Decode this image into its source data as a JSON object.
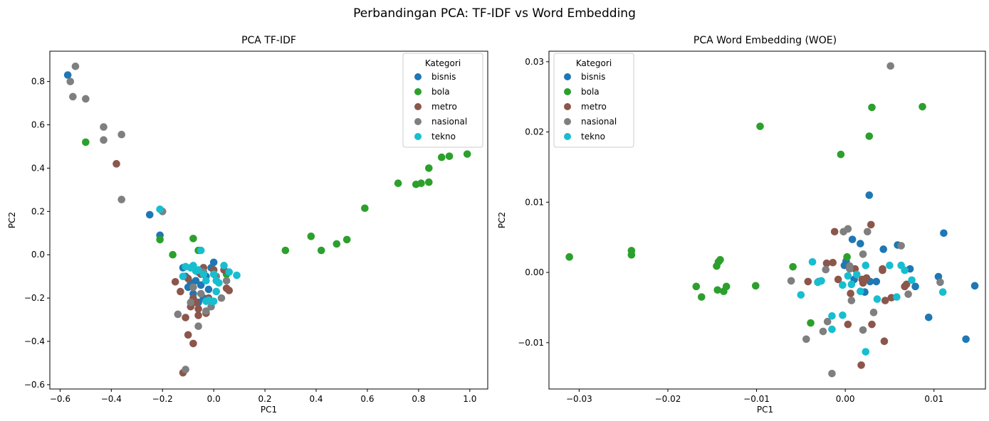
{
  "suptitle": "Perbandingan PCA: TF-IDF vs Word Embedding",
  "legend_title": "Kategori",
  "categories": [
    {
      "name": "bisnis",
      "color": "#1f77b4"
    },
    {
      "name": "bola",
      "color": "#2ca02c"
    },
    {
      "name": "metro",
      "color": "#8c564b"
    },
    {
      "name": "nasional",
      "color": "#7f7f7f"
    },
    {
      "name": "tekno",
      "color": "#17becf"
    }
  ],
  "chart_data": [
    {
      "type": "scatter",
      "title": "PCA TF-IDF",
      "xlabel": "PC1",
      "ylabel": "PC2",
      "xlim": [
        -0.64,
        1.07
      ],
      "ylim": [
        -0.62,
        0.94
      ],
      "xticks": [
        -0.6,
        -0.4,
        -0.2,
        0.0,
        0.2,
        0.4,
        0.6,
        0.8,
        1.0
      ],
      "xtick_labels": [
        "−0.6",
        "−0.4",
        "−0.2",
        "0.0",
        "0.2",
        "0.4",
        "0.6",
        "0.8",
        "1.0"
      ],
      "yticks": [
        -0.6,
        -0.4,
        -0.2,
        0.0,
        0.2,
        0.4,
        0.6,
        0.8
      ],
      "ytick_labels": [
        "−0.6",
        "−0.4",
        "−0.2",
        "0.0",
        "0.2",
        "0.4",
        "0.6",
        "0.8"
      ],
      "legend_position": "top-right",
      "grid": false,
      "series": [
        {
          "name": "bisnis",
          "points": [
            [
              -0.57,
              0.83
            ],
            [
              -0.25,
              0.185
            ],
            [
              -0.21,
              0.09
            ],
            [
              -0.12,
              -0.06
            ],
            [
              -0.11,
              -0.1
            ],
            [
              -0.1,
              -0.15
            ],
            [
              -0.09,
              -0.13
            ],
            [
              -0.08,
              -0.18
            ],
            [
              -0.07,
              -0.12
            ],
            [
              -0.06,
              -0.08
            ],
            [
              -0.05,
              -0.14
            ],
            [
              -0.04,
              -0.2
            ],
            [
              -0.03,
              -0.1
            ],
            [
              -0.02,
              -0.16
            ],
            [
              -0.01,
              -0.06
            ],
            [
              0.0,
              -0.035
            ],
            [
              -0.09,
              -0.06
            ],
            [
              -0.06,
              -0.22
            ]
          ]
        },
        {
          "name": "bola",
          "points": [
            [
              -0.5,
              0.52
            ],
            [
              -0.21,
              0.07
            ],
            [
              -0.16,
              0.0
            ],
            [
              -0.08,
              0.075
            ],
            [
              -0.06,
              0.02
            ],
            [
              0.05,
              -0.09
            ],
            [
              0.28,
              0.02
            ],
            [
              0.38,
              0.085
            ],
            [
              0.42,
              0.02
            ],
            [
              0.48,
              0.05
            ],
            [
              0.52,
              0.07
            ],
            [
              0.59,
              0.215
            ],
            [
              0.72,
              0.33
            ],
            [
              0.79,
              0.325
            ],
            [
              0.81,
              0.33
            ],
            [
              0.84,
              0.335
            ],
            [
              0.84,
              0.4
            ],
            [
              0.89,
              0.45
            ],
            [
              0.92,
              0.455
            ],
            [
              0.99,
              0.465
            ]
          ]
        },
        {
          "name": "metro",
          "points": [
            [
              -0.38,
              0.42
            ],
            [
              -0.15,
              -0.125
            ],
            [
              -0.13,
              -0.17
            ],
            [
              -0.11,
              -0.29
            ],
            [
              -0.1,
              -0.37
            ],
            [
              -0.09,
              -0.24
            ],
            [
              -0.08,
              -0.41
            ],
            [
              -0.07,
              -0.22
            ],
            [
              -0.06,
              -0.28
            ],
            [
              -0.05,
              -0.09
            ],
            [
              -0.04,
              -0.06
            ],
            [
              -0.03,
              -0.27
            ],
            [
              -0.02,
              -0.2
            ],
            [
              0.0,
              -0.07
            ],
            [
              0.04,
              -0.07
            ],
            [
              0.05,
              -0.155
            ],
            [
              0.06,
              -0.165
            ],
            [
              -0.12,
              -0.545
            ],
            [
              -0.1,
              -0.11
            ],
            [
              -0.06,
              -0.25
            ],
            [
              -0.08,
              -0.2
            ]
          ]
        },
        {
          "name": "nasional",
          "points": [
            [
              -0.56,
              0.8
            ],
            [
              -0.55,
              0.73
            ],
            [
              -0.54,
              0.87
            ],
            [
              -0.5,
              0.72
            ],
            [
              -0.43,
              0.59
            ],
            [
              -0.43,
              0.53
            ],
            [
              -0.36,
              0.555
            ],
            [
              -0.36,
              0.255
            ],
            [
              -0.2,
              0.2
            ],
            [
              -0.14,
              -0.275
            ],
            [
              -0.11,
              -0.53
            ],
            [
              -0.09,
              -0.22
            ],
            [
              -0.08,
              -0.15
            ],
            [
              -0.06,
              -0.33
            ],
            [
              -0.05,
              -0.18
            ],
            [
              -0.04,
              -0.08
            ],
            [
              -0.03,
              -0.26
            ],
            [
              -0.01,
              -0.24
            ],
            [
              0.01,
              -0.1
            ],
            [
              0.03,
              -0.2
            ],
            [
              0.05,
              -0.12
            ]
          ]
        },
        {
          "name": "tekno",
          "points": [
            [
              -0.21,
              0.21
            ],
            [
              -0.12,
              -0.1
            ],
            [
              -0.11,
              -0.055
            ],
            [
              -0.09,
              -0.06
            ],
            [
              -0.08,
              -0.05
            ],
            [
              -0.07,
              -0.075
            ],
            [
              -0.06,
              -0.07
            ],
            [
              -0.05,
              0.02
            ],
            [
              -0.04,
              -0.09
            ],
            [
              -0.03,
              -0.12
            ],
            [
              -0.02,
              -0.21
            ],
            [
              -0.01,
              -0.215
            ],
            [
              0.0,
              -0.09
            ],
            [
              0.01,
              -0.12
            ],
            [
              0.01,
              -0.17
            ],
            [
              0.02,
              -0.13
            ],
            [
              0.04,
              -0.05
            ],
            [
              0.06,
              -0.08
            ],
            [
              0.09,
              -0.095
            ],
            [
              0.0,
              -0.215
            ],
            [
              -0.03,
              -0.215
            ]
          ]
        }
      ]
    },
    {
      "type": "scatter",
      "title": "PCA Word Embedding (WOE)",
      "xlabel": "PC1",
      "ylabel": "PC2",
      "xlim": [
        -0.0334,
        0.0158
      ],
      "ylim": [
        -0.0166,
        0.0315
      ],
      "xticks": [
        -0.03,
        -0.02,
        -0.01,
        0.0,
        0.01
      ],
      "xtick_labels": [
        "−0.03",
        "−0.02",
        "−0.01",
        "0.00",
        "0.01"
      ],
      "yticks": [
        -0.01,
        0.0,
        0.01,
        0.02,
        0.03
      ],
      "ytick_labels": [
        "−0.01",
        "0.00",
        "0.01",
        "0.02",
        "0.03"
      ],
      "legend_position": "top-left",
      "grid": false,
      "series": [
        {
          "name": "bisnis",
          "points": [
            [
              0.0027,
              0.011
            ],
            [
              0.0111,
              0.0056
            ],
            [
              0.0059,
              0.0039
            ],
            [
              0.0043,
              0.0033
            ],
            [
              0.0017,
              0.0041
            ],
            [
              0.0008,
              0.0047
            ],
            [
              0.0001,
              0.0016
            ],
            [
              -0.0001,
              0.001
            ],
            [
              0.001,
              -0.001
            ],
            [
              0.0022,
              -0.0028
            ],
            [
              0.0028,
              -0.0013
            ],
            [
              0.0035,
              -0.0013
            ],
            [
              0.0073,
              0.0005
            ],
            [
              0.0079,
              -0.002
            ],
            [
              0.0105,
              -0.0006
            ],
            [
              0.0094,
              -0.0064
            ],
            [
              0.0136,
              -0.0095
            ],
            [
              0.0146,
              -0.0019
            ]
          ]
        },
        {
          "name": "bola",
          "points": [
            [
              -0.0311,
              0.0022
            ],
            [
              -0.0241,
              0.0031
            ],
            [
              -0.0241,
              0.0025
            ],
            [
              -0.0168,
              -0.002
            ],
            [
              -0.0162,
              -0.0035
            ],
            [
              -0.0145,
              0.0009
            ],
            [
              -0.0143,
              0.0015
            ],
            [
              -0.0141,
              0.0018
            ],
            [
              -0.0144,
              -0.0025
            ],
            [
              -0.0137,
              -0.0027
            ],
            [
              -0.0134,
              -0.002
            ],
            [
              -0.0101,
              -0.0019
            ],
            [
              -0.0096,
              0.0208
            ],
            [
              -0.0059,
              0.0008
            ],
            [
              -0.0039,
              -0.0072
            ],
            [
              -0.0005,
              0.0168
            ],
            [
              0.0002,
              0.0022
            ],
            [
              0.0027,
              0.0194
            ],
            [
              0.003,
              0.0235
            ],
            [
              0.0087,
              0.0236
            ]
          ]
        },
        {
          "name": "metro",
          "points": [
            [
              0.0029,
              0.0068
            ],
            [
              -0.0012,
              0.0058
            ],
            [
              0.0011,
              0.0005
            ],
            [
              -0.0014,
              0.0014
            ],
            [
              -0.0008,
              -0.001
            ],
            [
              0.0006,
              -0.003
            ],
            [
              0.0019,
              -0.001
            ],
            [
              0.002,
              -0.0015
            ],
            [
              0.003,
              -0.0074
            ],
            [
              0.0042,
              0.0003
            ],
            [
              0.0045,
              -0.004
            ],
            [
              0.0052,
              -0.0036
            ],
            [
              0.0067,
              -0.002
            ],
            [
              -0.0042,
              -0.0013
            ],
            [
              0.0018,
              -0.0132
            ],
            [
              0.0044,
              -0.0098
            ],
            [
              0.0042,
              0.0005
            ],
            [
              0.0003,
              -0.0074
            ],
            [
              -0.0021,
              0.0013
            ],
            [
              0.0069,
              -0.0017
            ],
            [
              0.0024,
              -0.0008
            ]
          ]
        },
        {
          "name": "nasional",
          "points": [
            [
              0.0051,
              0.0294
            ],
            [
              0.0063,
              0.0038
            ],
            [
              0.0003,
              0.0062
            ],
            [
              -0.0002,
              0.0058
            ],
            [
              0.0025,
              0.0058
            ],
            [
              0.002,
              0.0026
            ],
            [
              0.0005,
              0.0009
            ],
            [
              -0.0022,
              0.0004
            ],
            [
              -0.0061,
              -0.0012
            ],
            [
              -0.003,
              -0.0013
            ],
            [
              -0.0044,
              -0.0095
            ],
            [
              -0.0025,
              -0.0084
            ],
            [
              -0.002,
              -0.007
            ],
            [
              -0.0015,
              -0.0144
            ],
            [
              0.0007,
              -0.004
            ],
            [
              0.002,
              -0.0082
            ],
            [
              0.0032,
              -0.0057
            ],
            [
              0.0071,
              -0.0031
            ],
            [
              0.0107,
              -0.0014
            ],
            [
              0.0005,
              0.0005
            ]
          ]
        },
        {
          "name": "tekno",
          "points": [
            [
              -0.0037,
              0.0015
            ],
            [
              -0.005,
              -0.0032
            ],
            [
              -0.0015,
              -0.0062
            ],
            [
              -0.0015,
              -0.0081
            ],
            [
              -0.0003,
              -0.0061
            ],
            [
              -0.0031,
              -0.0014
            ],
            [
              -0.0027,
              -0.0012
            ],
            [
              0.0003,
              -0.0005
            ],
            [
              0.0007,
              -0.0017
            ],
            [
              0.0013,
              -0.0003
            ],
            [
              0.0017,
              -0.0027
            ],
            [
              0.0023,
              0.001
            ],
            [
              0.0036,
              -0.0038
            ],
            [
              0.005,
              0.001
            ],
            [
              0.0058,
              -0.0035
            ],
            [
              0.0063,
              0.001
            ],
            [
              0.0067,
              0.0003
            ],
            [
              0.0075,
              -0.0011
            ],
            [
              0.011,
              -0.0028
            ],
            [
              0.0023,
              -0.0113
            ],
            [
              -0.0003,
              -0.0018
            ]
          ]
        }
      ]
    }
  ]
}
